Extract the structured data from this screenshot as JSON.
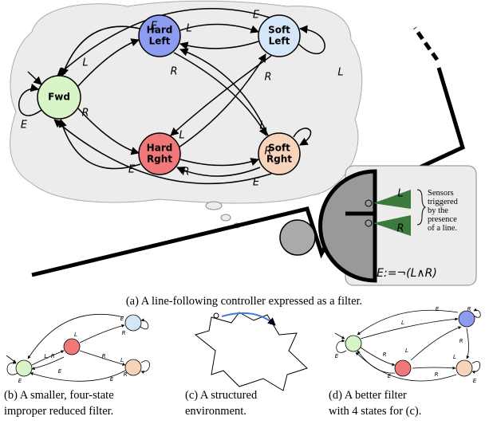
{
  "main": {
    "nodes": [
      {
        "label": [
          "Fwd"
        ]
      },
      {
        "label": [
          "Hard",
          "Left"
        ]
      },
      {
        "label": [
          "Soft",
          "Left"
        ]
      },
      {
        "label": [
          "Hard",
          "Rght"
        ]
      },
      {
        "label": [
          "Soft",
          "Rght"
        ]
      }
    ],
    "edge_labels": [
      "E",
      "L",
      "E",
      "L",
      "R",
      "R",
      "L",
      "E",
      "R",
      "L",
      "L",
      "R",
      "E",
      "R",
      "E"
    ],
    "sensor": {
      "left": "L",
      "right": "R",
      "note": [
        "Sensors",
        "triggered",
        "by the",
        "presence",
        "of a line."
      ],
      "formula": "E:=¬(L∧R)"
    }
  },
  "small_b": {
    "edge_labels": [
      "L, R",
      "E",
      "L",
      "E",
      "R",
      "E",
      "R",
      "L",
      "R",
      "E"
    ]
  },
  "small_d": {
    "edge_labels": [
      "E",
      "L",
      "R",
      "E",
      "R",
      "L",
      "E",
      "R",
      "L",
      "R",
      "E"
    ]
  },
  "captions": {
    "a": "(a) A line-following controller expressed as a filter.",
    "b": [
      "(b) A smaller, four-state",
      "improper reduced filter."
    ],
    "c": [
      "(c) A structured",
      "environment."
    ],
    "d": [
      "(d)  A  better  filter",
      "with 4 states for (c)."
    ]
  }
}
